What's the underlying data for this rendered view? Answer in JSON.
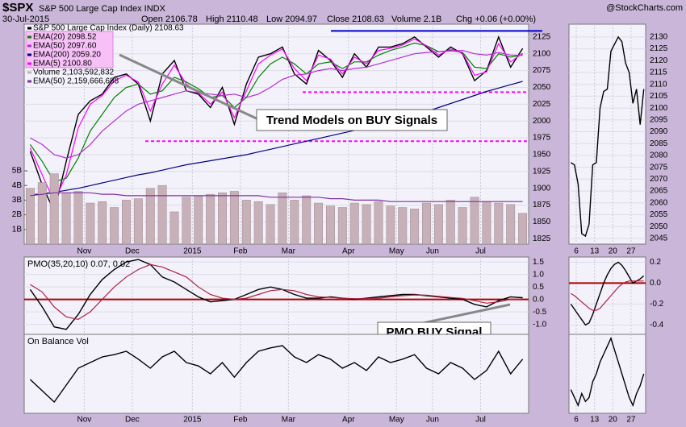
{
  "header": {
    "symbol": "$SPX",
    "name": "S&P 500 Large Cap Index INDX",
    "source": "@StockCharts.com",
    "date": "30-Jul-2015",
    "quote": [
      "Open 2106.78",
      "High 2110.48",
      "Low 2094.97",
      "Close 2108.63",
      "Volume 2.1B",
      "Chg +0.06 (+0.00%)"
    ]
  },
  "chart_data": [
    {
      "type": "line",
      "annotation": "Trend Models on BUY Signals",
      "categories": [
        null,
        null,
        null,
        null,
        null,
        "Nov",
        null,
        null,
        null,
        "Dec",
        null,
        null,
        null,
        null,
        "2015",
        null,
        null,
        null,
        "Feb",
        null,
        null,
        null,
        "Mar",
        null,
        null,
        null,
        null,
        "Apr",
        null,
        null,
        null,
        "May",
        null,
        null,
        "Jun",
        null,
        null,
        null,
        "Jul",
        null,
        null,
        null
      ],
      "ylim": [
        1817,
        2144
      ],
      "yticks": [
        1825,
        1850,
        1875,
        1900,
        1925,
        1950,
        1975,
        2000,
        2025,
        2050,
        2075,
        2100,
        2125
      ],
      "y2lim": [
        0,
        15
      ],
      "y2ticks": [
        {
          "value": 1,
          "label": "1B"
        },
        {
          "value": 2,
          "label": "2B"
        },
        {
          "value": 3,
          "label": "3B"
        },
        {
          "value": 4,
          "label": "4B"
        },
        {
          "value": 5,
          "label": "5B"
        }
      ],
      "levels": [
        2134,
        2043,
        1970
      ],
      "level_colors": [
        "#0000cc",
        "#ff00ff",
        "#ff00ff"
      ],
      "series": [
        {
          "name": "S&P 500 Large Cap Index (Daily) 2108.63",
          "color": "#000000",
          "values": [
            1955,
            1905,
            1865,
            1940,
            2010,
            2030,
            2040,
            2065,
            2070,
            2055,
            2000,
            2070,
            2090,
            2045,
            2040,
            2020,
            2050,
            1995,
            2055,
            2095,
            2100,
            2110,
            2070,
            2055,
            2105,
            2090,
            2065,
            2100,
            2080,
            2110,
            2110,
            2115,
            2125,
            2110,
            2095,
            2110,
            2100,
            2060,
            2075,
            2125,
            2080,
            2108
          ]
        },
        {
          "name": "EMA(20) 2098.52",
          "color": "#008000",
          "values": [
            1965,
            1940,
            1910,
            1915,
            1945,
            1985,
            2010,
            2035,
            2050,
            2055,
            2040,
            2045,
            2065,
            2058,
            2048,
            2035,
            2038,
            2020,
            2035,
            2065,
            2085,
            2095,
            2085,
            2070,
            2085,
            2088,
            2078,
            2088,
            2088,
            2098,
            2105,
            2110,
            2116,
            2112,
            2103,
            2105,
            2102,
            2080,
            2078,
            2100,
            2095,
            2098.52
          ]
        },
        {
          "name": "EMA(50) 2097.60",
          "color": "#b030d0",
          "values": [
            1975,
            1965,
            1950,
            1945,
            1950,
            1965,
            1985,
            2000,
            2015,
            2025,
            2030,
            2035,
            2040,
            2045,
            2042,
            2040,
            2038,
            2040,
            2035,
            2040,
            2050,
            2062,
            2068,
            2070,
            2075,
            2078,
            2075,
            2078,
            2080,
            2085,
            2090,
            2095,
            2100,
            2102,
            2103,
            2104,
            2105,
            2100,
            2098,
            2102,
            2098,
            2097.6
          ]
        },
        {
          "name": "EMA(200) 2059.20",
          "color": "#000080",
          "values": [
            1890,
            1892,
            1894,
            1897,
            1900,
            1904,
            1908,
            1912,
            1916,
            1920,
            1923,
            1927,
            1931,
            1935,
            1938,
            1941,
            1944,
            1947,
            1950,
            1954,
            1958,
            1962,
            1966,
            1970,
            1974,
            1978,
            1982,
            1986,
            1990,
            1994,
            1998,
            2002,
            2008,
            2014,
            2020,
            2026,
            2032,
            2038,
            2044,
            2049,
            2054,
            2059
          ]
        },
        {
          "name": "EMA(5) 2100.80",
          "color": "#ff00ff",
          "values": [
            1960,
            1920,
            1880,
            1920,
            1990,
            2025,
            2038,
            2060,
            2068,
            2058,
            2015,
            2055,
            2083,
            2055,
            2042,
            2025,
            2043,
            2005,
            2045,
            2085,
            2098,
            2107,
            2078,
            2060,
            2098,
            2092,
            2070,
            2095,
            2085,
            2105,
            2108,
            2113,
            2122,
            2112,
            2098,
            2107,
            2101,
            2068,
            2073,
            2115,
            2088,
            2100.8
          ]
        },
        {
          "name": "Volume 2,103,592,832",
          "color": "#c8b0b8",
          "axis": "y2",
          "type": "bar",
          "values": [
            3.8,
            4.2,
            4.8,
            3.5,
            3.6,
            2.8,
            2.9,
            2.5,
            3.0,
            3.1,
            3.8,
            4.0,
            2.2,
            3.2,
            3.3,
            3.4,
            3.5,
            3.6,
            3.0,
            2.9,
            2.7,
            3.5,
            3.0,
            3.3,
            2.8,
            2.6,
            2.5,
            2.8,
            2.7,
            2.9,
            2.6,
            2.5,
            2.4,
            2.8,
            2.7,
            3.0,
            2.5,
            3.2,
            2.9,
            2.8,
            2.7,
            2.1
          ]
        },
        {
          "name": "EMA(50) 2,159,666,688",
          "color": "#8030a0",
          "axis": "y2",
          "values": [
            3.3,
            3.4,
            3.5,
            3.5,
            3.5,
            3.5,
            3.4,
            3.4,
            3.3,
            3.3,
            3.3,
            3.3,
            3.3,
            3.3,
            3.3,
            3.3,
            3.3,
            3.3,
            3.3,
            3.3,
            3.2,
            3.2,
            3.2,
            3.2,
            3.2,
            3.1,
            3.1,
            3.0,
            3.0,
            3.0,
            2.9,
            2.9,
            2.9,
            2.9,
            2.9,
            2.9,
            2.9,
            2.9,
            2.9,
            2.9,
            2.9,
            2.9
          ]
        }
      ]
    },
    {
      "type": "line",
      "title": "PMO(35,20,10) 0.07, 0.02",
      "annotation": "PMO BUY Signal",
      "categories": [
        null,
        null,
        null,
        null,
        null,
        "Nov",
        null,
        null,
        null,
        "Dec",
        null,
        null,
        null,
        null,
        "2015",
        null,
        null,
        null,
        "Feb",
        null,
        null,
        null,
        "Mar",
        null,
        null,
        null,
        null,
        "Apr",
        null,
        null,
        null,
        "May",
        null,
        null,
        "Jun",
        null,
        null,
        null,
        "Jul",
        null,
        null,
        null
      ],
      "ylim": [
        -1.4,
        1.7
      ],
      "yticks": [
        {
          "value": -1,
          "label": "-1.0"
        },
        {
          "value": -0.5,
          "label": "-0.5"
        },
        {
          "value": 0,
          "label": "0.0"
        },
        {
          "value": 0.5,
          "label": "0.5"
        },
        {
          "value": 1,
          "label": "1.0"
        },
        {
          "value": 1.5,
          "label": "1.5"
        }
      ],
      "levels": [
        0
      ],
      "level_colors": [
        "#aa0000"
      ],
      "series": [
        {
          "color": "#000000",
          "values": [
            0.4,
            -0.3,
            -1.1,
            -1.2,
            -0.6,
            0.2,
            0.8,
            1.2,
            1.5,
            1.6,
            1.4,
            0.9,
            0.7,
            0.4,
            0.1,
            -0.1,
            -0.05,
            0,
            0.2,
            0.4,
            0.5,
            0.4,
            0.2,
            0.05,
            0.05,
            0.1,
            0.05,
            0,
            0.05,
            0.1,
            0.15,
            0.2,
            0.2,
            0.15,
            0.1,
            0.05,
            0,
            -0.2,
            -0.3,
            -0.05,
            0.1,
            0.07
          ]
        },
        {
          "color": "#b02040",
          "values": [
            0.6,
            0.3,
            -0.3,
            -0.7,
            -0.8,
            -0.5,
            0,
            0.5,
            0.9,
            1.2,
            1.4,
            1.3,
            1.1,
            0.9,
            0.5,
            0.2,
            0.05,
            0,
            0.05,
            0.2,
            0.35,
            0.4,
            0.35,
            0.2,
            0.1,
            0.08,
            0.05,
            0.03,
            0.03,
            0.05,
            0.1,
            0.15,
            0.18,
            0.17,
            0.12,
            0.08,
            0.04,
            -0.05,
            -0.15,
            -0.1,
            0,
            0.02
          ]
        }
      ]
    },
    {
      "type": "line",
      "title": "On Balance Vol",
      "categories": [
        null,
        null,
        null,
        null,
        null,
        "Nov",
        null,
        null,
        null,
        "Dec",
        null,
        null,
        null,
        null,
        "2015",
        null,
        null,
        null,
        "Feb",
        null,
        null,
        null,
        "Mar",
        null,
        null,
        null,
        null,
        "Apr",
        null,
        null,
        null,
        "May",
        null,
        null,
        "Jun",
        null,
        null,
        null,
        "Jul",
        null,
        null,
        null
      ],
      "ylim": [
        10,
        80
      ],
      "series": [
        {
          "color": "#000000",
          "values": [
            40,
            30,
            20,
            35,
            50,
            55,
            60,
            62,
            65,
            58,
            50,
            60,
            65,
            55,
            52,
            45,
            55,
            42,
            55,
            65,
            68,
            70,
            60,
            55,
            62,
            58,
            50,
            55,
            48,
            60,
            55,
            58,
            62,
            50,
            45,
            55,
            50,
            40,
            48,
            65,
            45,
            58
          ]
        }
      ]
    },
    {
      "type": "line",
      "categories": [
        null,
        null,
        "6",
        null,
        null,
        null,
        null,
        "13",
        null,
        null,
        null,
        null,
        "20",
        null,
        null,
        null,
        null,
        "27",
        null,
        null,
        null
      ],
      "ylim": [
        2042.6,
        2135.4
      ],
      "yticks": [
        2045,
        2050,
        2055,
        2060,
        2065,
        2070,
        2075,
        2080,
        2085,
        2090,
        2095,
        2100,
        2105,
        2110,
        2115,
        2120,
        2125,
        2130
      ],
      "series": [
        {
          "color": "#000000",
          "values": [
            2077,
            2076,
            2068,
            2047,
            2046,
            2051,
            2076,
            2077,
            2100,
            2107,
            2108,
            2124,
            2127,
            2130,
            2128,
            2119,
            2115,
            2102,
            2108,
            2093,
            2108
          ]
        }
      ]
    },
    {
      "type": "line",
      "categories": [
        null,
        null,
        "6",
        null,
        null,
        null,
        null,
        "13",
        null,
        null,
        null,
        null,
        "20",
        null,
        null,
        null,
        null,
        "27",
        null,
        null,
        null
      ],
      "ylim": [
        -0.49,
        0.25
      ],
      "yticks": [
        {
          "value": -0.4,
          "label": "-0.4"
        },
        {
          "value": -0.2,
          "label": "-0.2"
        },
        {
          "value": 0,
          "label": "0.0"
        },
        {
          "value": 0.2,
          "label": "0.2"
        }
      ],
      "levels": [
        0
      ],
      "level_colors": [
        "#aa0000"
      ],
      "series": [
        {
          "color": "#000000",
          "values": [
            -0.2,
            -0.25,
            -0.3,
            -0.35,
            -0.4,
            -0.38,
            -0.3,
            -0.2,
            -0.1,
            0,
            0.08,
            0.14,
            0.18,
            0.2,
            0.17,
            0.12,
            0.06,
            0,
            0.02,
            0.04,
            0.07
          ]
        },
        {
          "color": "#b02040",
          "values": [
            -0.1,
            -0.12,
            -0.15,
            -0.18,
            -0.21,
            -0.24,
            -0.26,
            -0.26,
            -0.24,
            -0.2,
            -0.16,
            -0.12,
            -0.08,
            -0.04,
            -0.01,
            0.01,
            0.02,
            0.02,
            0.02,
            0.02,
            0.02
          ]
        }
      ]
    },
    {
      "type": "line",
      "categories": [
        null,
        null,
        "6",
        null,
        null,
        null,
        null,
        "13",
        null,
        null,
        null,
        null,
        "20",
        null,
        null,
        null,
        null,
        "27",
        null,
        null,
        null
      ],
      "ylim": [
        0,
        100
      ],
      "series": [
        {
          "color": "#000000",
          "values": [
            30,
            20,
            10,
            25,
            15,
            20,
            40,
            50,
            65,
            75,
            85,
            95,
            80,
            65,
            50,
            35,
            20,
            10,
            25,
            35,
            50
          ]
        }
      ]
    }
  ]
}
